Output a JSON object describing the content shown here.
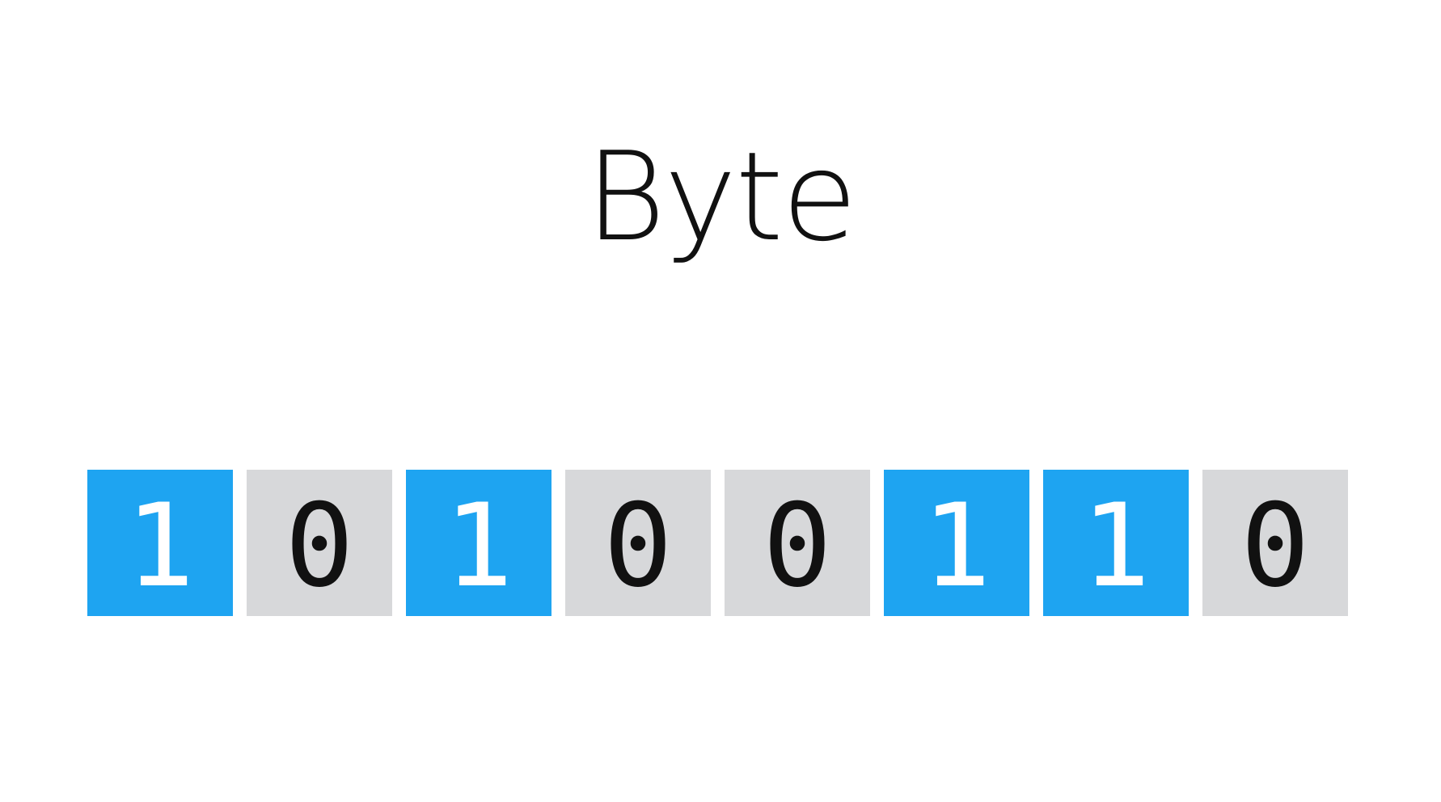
{
  "title": "Byte",
  "bits": [
    "1",
    "0",
    "1",
    "0",
    "0",
    "1",
    "1",
    "0"
  ],
  "colors": {
    "one_background": "#1ea4f1",
    "zero_background": "#d7d8da",
    "one_text": "#ffffff",
    "zero_text": "#111111"
  }
}
